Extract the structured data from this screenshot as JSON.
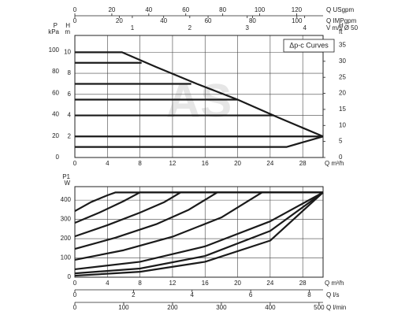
{
  "chart_data": [
    {
      "type": "line",
      "annotation": "Δp-c Curves",
      "watermark": "AS",
      "xlabel": "Q",
      "xunit": "m³/h",
      "xlim": [
        0,
        30.5
      ],
      "xticks": [
        0,
        4,
        8,
        12,
        16,
        20,
        24,
        28
      ],
      "ylabel": "H",
      "yunit": "m",
      "ylim": [
        0,
        11.6
      ],
      "yticks": [
        2,
        4,
        6,
        8,
        10
      ],
      "y2label": "H",
      "y2unit": "ft",
      "y2lim": [
        0,
        38.06
      ],
      "y2ticks": [
        0,
        5,
        10,
        15,
        20,
        25,
        30,
        35
      ],
      "grid": true,
      "extra_axes": [
        {
          "position": "left",
          "label": "P",
          "unit": "kPa",
          "lim": [
            0,
            113.8
          ],
          "ticks": [
            0,
            20,
            40,
            60,
            80,
            100
          ]
        },
        {
          "position": "top",
          "label": "Q",
          "unit": "USgpm",
          "lim": [
            0,
            134.3
          ],
          "ticks": [
            0,
            20,
            40,
            60,
            80,
            100,
            120
          ]
        },
        {
          "position": "top",
          "label": "Q",
          "unit": "IMPgpm",
          "lim": [
            0,
            111.8
          ],
          "ticks": [
            0,
            20,
            40,
            60,
            80,
            100
          ]
        },
        {
          "position": "top",
          "label": "V m/s",
          "unit": "Ø 50",
          "lim": [
            0,
            4.32
          ],
          "ticks": [
            1,
            2,
            3,
            4
          ]
        }
      ],
      "series": [
        {
          "color": "#1a1a1a",
          "x": [
            0,
            5.8,
            10,
            15,
            20,
            25,
            30.5
          ],
          "values": [
            10,
            10,
            8.6,
            7.0,
            5.5,
            3.8,
            2
          ]
        },
        {
          "color": "#1a1a1a",
          "x": [
            0,
            8.2
          ],
          "values": [
            9,
            9
          ]
        },
        {
          "color": "#1a1a1a",
          "x": [
            0,
            14.3
          ],
          "values": [
            7,
            7
          ]
        },
        {
          "color": "#1a1a1a",
          "x": [
            0,
            20
          ],
          "values": [
            5.5,
            5.5
          ]
        },
        {
          "color": "#1a1a1a",
          "x": [
            0,
            24.5
          ],
          "values": [
            4,
            4
          ]
        },
        {
          "color": "#1a1a1a",
          "x": [
            0,
            30.5
          ],
          "values": [
            2,
            2
          ]
        },
        {
          "color": "#1a1a1a",
          "x": [
            0,
            26,
            30.5
          ],
          "values": [
            1,
            1,
            2
          ]
        }
      ]
    },
    {
      "type": "line",
      "xlabel": "Q",
      "xunit": "m³/h",
      "xlim": [
        0,
        30.5
      ],
      "xticks": [
        0,
        4,
        8,
        12,
        16,
        20,
        24,
        28
      ],
      "ylabel": "P1",
      "yunit": "W",
      "ylim": [
        0,
        470
      ],
      "yticks": [
        0,
        100,
        200,
        300,
        400
      ],
      "grid": true,
      "extra_axes": [
        {
          "position": "bottom",
          "label": "Q",
          "unit": "l/s",
          "lim": [
            0,
            8.47
          ],
          "ticks": [
            0,
            2,
            4,
            6,
            8
          ]
        },
        {
          "position": "bottom",
          "label": "Q",
          "unit": "l/min",
          "lim": [
            0,
            508.3
          ],
          "ticks": [
            0,
            100,
            200,
            300,
            400,
            500
          ]
        }
      ],
      "series": [
        {
          "color": "#1a1a1a",
          "x": [
            0,
            2,
            4,
            5,
            30.5
          ],
          "values": [
            343,
            390,
            425,
            440,
            440
          ]
        },
        {
          "color": "#1a1a1a",
          "x": [
            0,
            3,
            6,
            8,
            30.5
          ],
          "values": [
            282,
            335,
            395,
            440,
            440
          ]
        },
        {
          "color": "#1a1a1a",
          "x": [
            0,
            4,
            8,
            11,
            13,
            30.5
          ],
          "values": [
            212,
            270,
            335,
            390,
            440,
            440
          ]
        },
        {
          "color": "#1a1a1a",
          "x": [
            0,
            5,
            10,
            14,
            17.5,
            30.5
          ],
          "values": [
            147,
            205,
            275,
            350,
            440,
            440
          ]
        },
        {
          "color": "#1a1a1a",
          "x": [
            0,
            6,
            12,
            18,
            23,
            30.5
          ],
          "values": [
            90,
            140,
            210,
            310,
            440,
            440
          ]
        },
        {
          "color": "#1a1a1a",
          "x": [
            0,
            8,
            16,
            24,
            30.5
          ],
          "values": [
            41,
            80,
            160,
            290,
            440
          ]
        },
        {
          "color": "#1a1a1a",
          "x": [
            0,
            8,
            16,
            24,
            30.5
          ],
          "values": [
            20,
            45,
            110,
            240,
            440
          ]
        },
        {
          "color": "#1a1a1a",
          "x": [
            0,
            8,
            16,
            24,
            30.5
          ],
          "values": [
            8,
            28,
            80,
            190,
            440
          ]
        }
      ]
    }
  ]
}
